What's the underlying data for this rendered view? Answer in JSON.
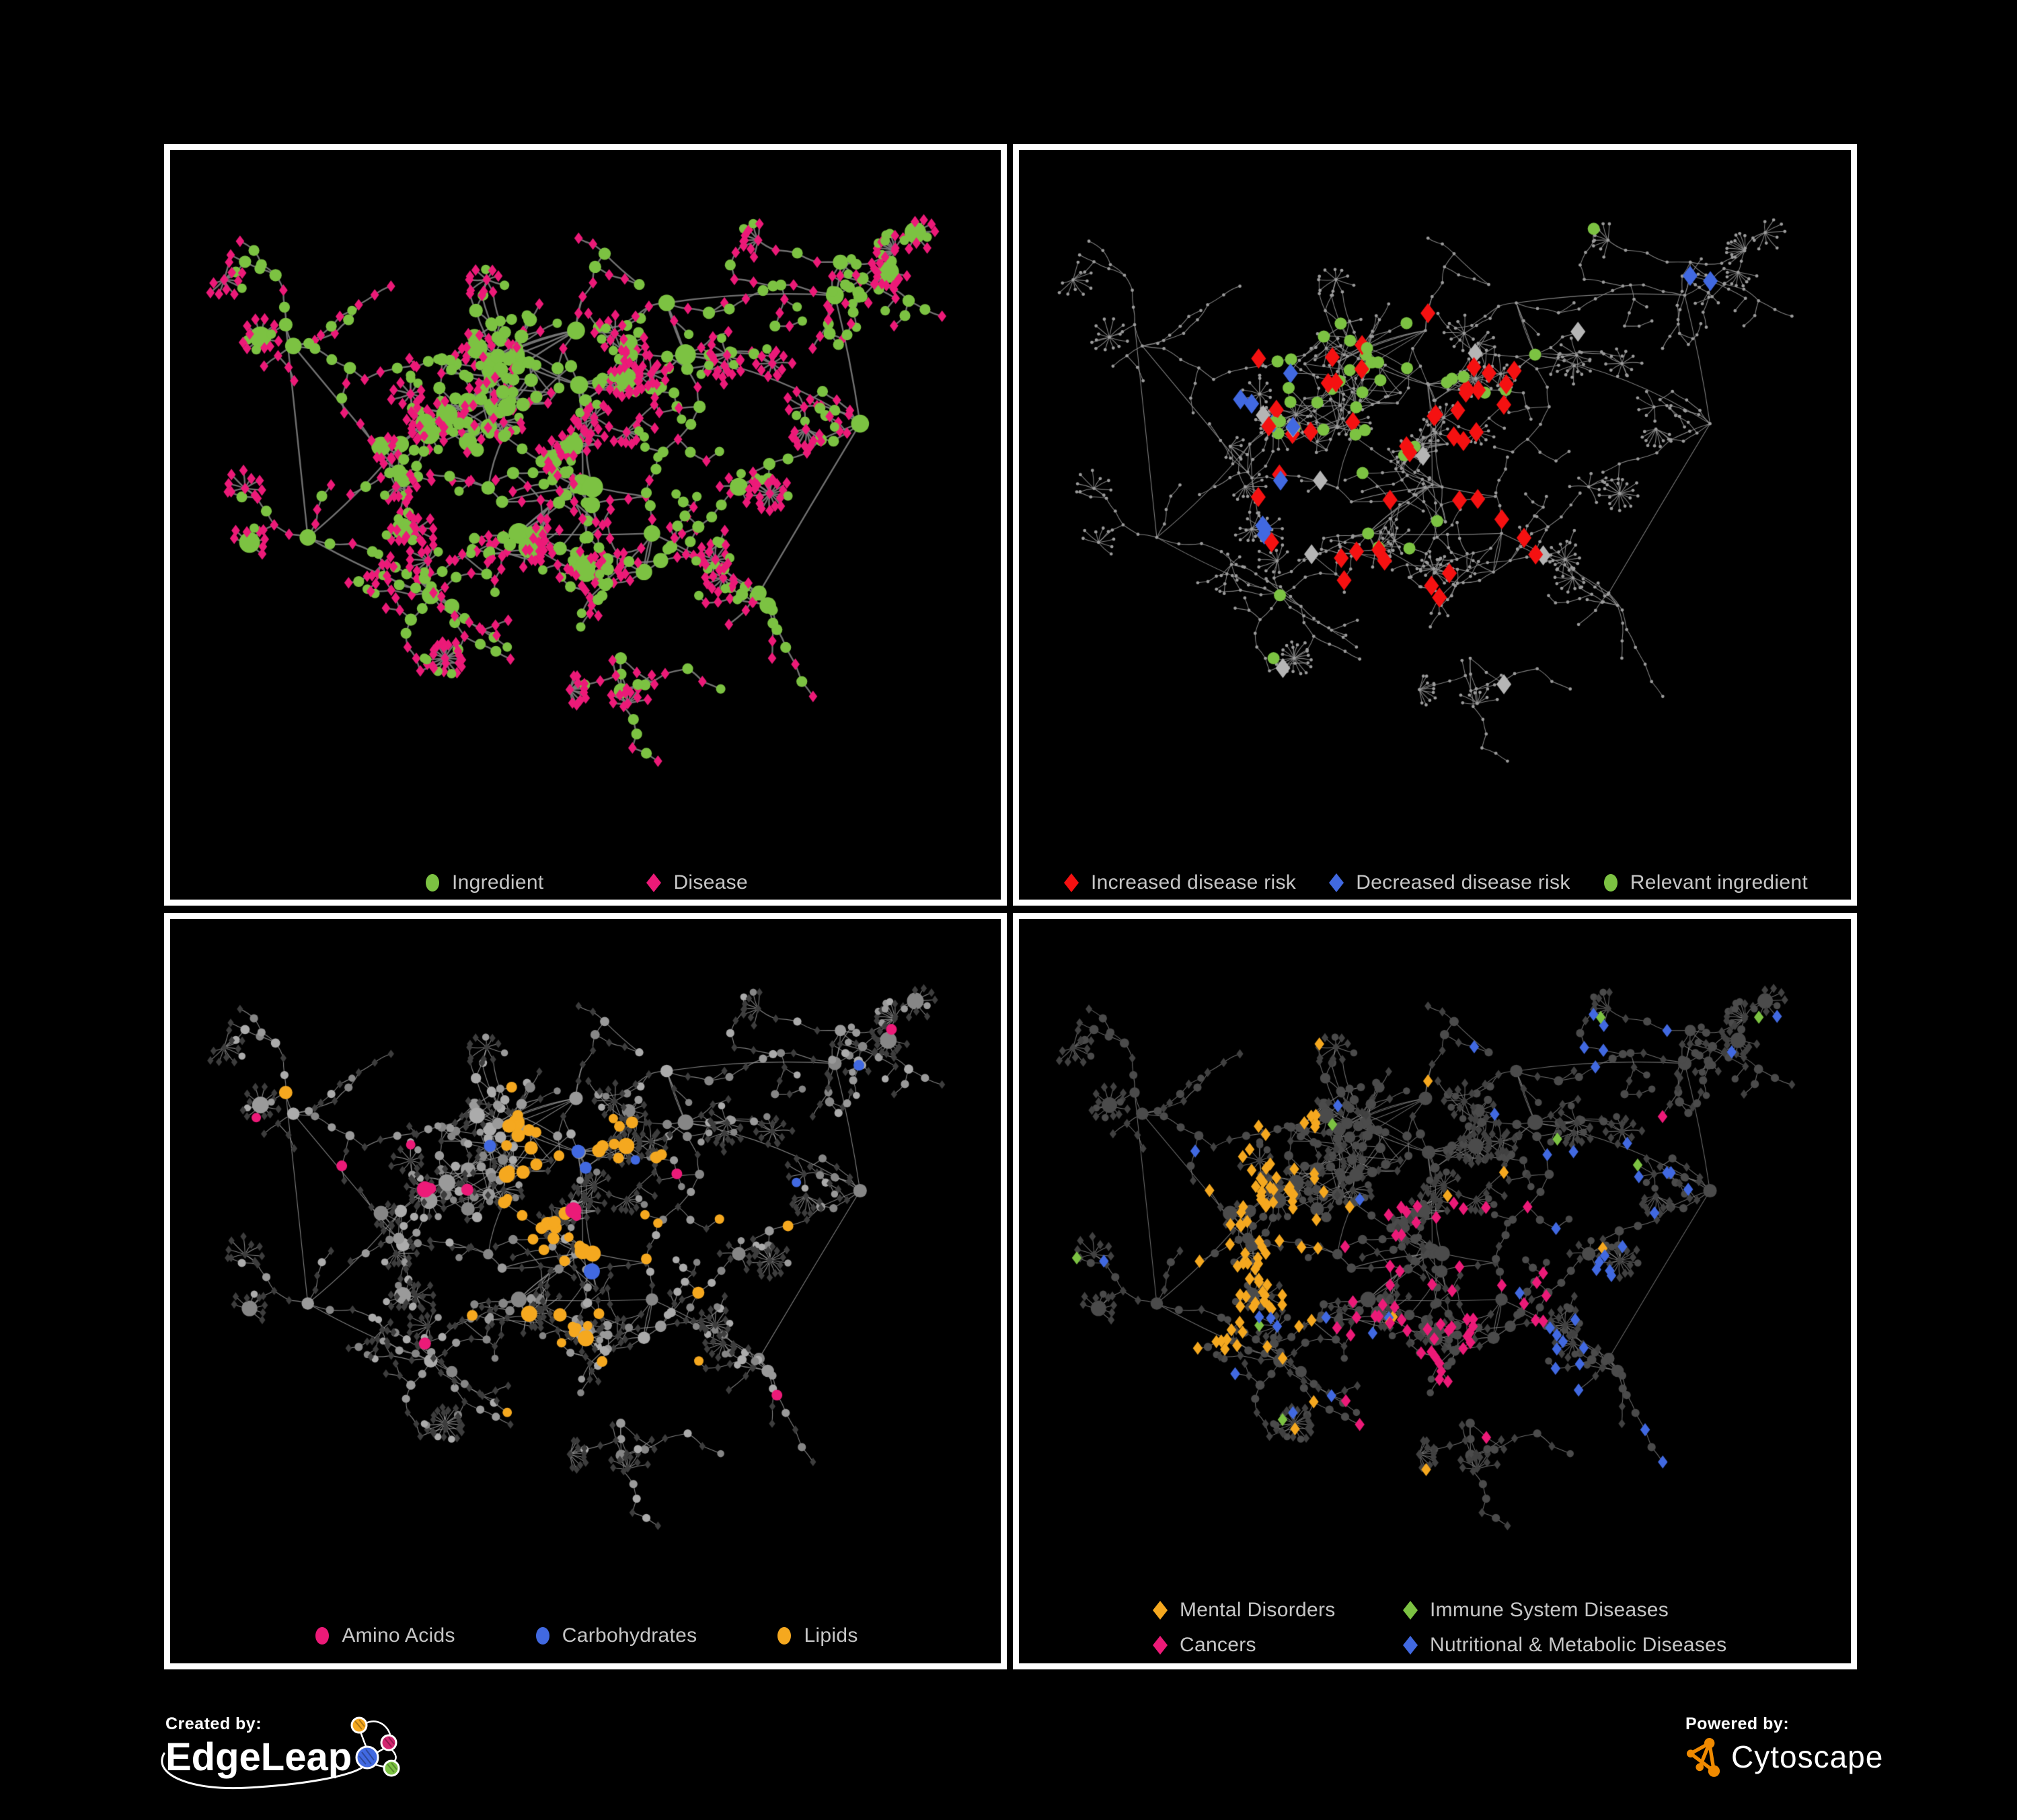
{
  "page": {
    "background": "#000000",
    "frame_color": "#ffffff",
    "legend_text_color": "#C6C6C6"
  },
  "panels": [
    {
      "id": "ingredient-disease-network",
      "position": "top-left",
      "legend": [
        {
          "label": "Ingredient",
          "marker": "circle",
          "color": "#7CC242"
        },
        {
          "label": "Disease",
          "marker": "diamond",
          "color": "#EC1A78"
        }
      ]
    },
    {
      "id": "disease-risk-network",
      "position": "top-right",
      "legend": [
        {
          "label": "Increased disease risk",
          "marker": "diamond",
          "color": "#F51111"
        },
        {
          "label": "Decreased disease risk",
          "marker": "diamond",
          "color": "#4169E1"
        },
        {
          "label": "Relevant ingredient",
          "marker": "circle",
          "color": "#7CC242"
        }
      ]
    },
    {
      "id": "nutrient-class-network",
      "position": "bottom-left",
      "legend": [
        {
          "label": "Amino Acids",
          "marker": "circle",
          "color": "#EC1A78"
        },
        {
          "label": "Carbohydrates",
          "marker": "circle",
          "color": "#4169E1"
        },
        {
          "label": "Lipids",
          "marker": "circle",
          "color": "#F5A81F"
        }
      ]
    },
    {
      "id": "disease-class-network",
      "position": "bottom-right",
      "legend": [
        {
          "label": "Mental Disorders",
          "marker": "diamond",
          "color": "#F5A81F"
        },
        {
          "label": "Immune System Diseases",
          "marker": "diamond",
          "color": "#7CC242"
        },
        {
          "label": "Cancers",
          "marker": "diamond",
          "color": "#EC1A78"
        },
        {
          "label": "Nutritional & Metabolic Diseases",
          "marker": "diamond",
          "color": "#4169E1"
        }
      ]
    }
  ],
  "network_styles": {
    "ingredient-disease-network": {
      "edge": "#7D7D7D",
      "ingredient": "#7CC242",
      "disease": "#EC1A78"
    },
    "disease-risk-network": {
      "edge": "#8D8D8D",
      "node": "#9B9B9B",
      "increased": "#F51111",
      "decreased": "#4169E1",
      "no_effect": "#B5B5B5",
      "relevant": "#7CC242"
    },
    "nutrient-class-network": {
      "edge": "#9E9E9E",
      "ingredient": "#A6A6A6",
      "disease": "#3D3D3D",
      "amino_acids": "#EC1A78",
      "carbohydrates": "#4169E1",
      "lipids": "#F5A81F"
    },
    "disease-class-network": {
      "edge": "#8A8A8A",
      "ingredient": "#4B4B4B",
      "disease": "#414141",
      "mental": "#F5A81F",
      "immune": "#7CC242",
      "cancers": "#EC1A78",
      "nutritional": "#4169E1"
    }
  },
  "footer": {
    "created_by_label": "Created by:",
    "edgeleap_name": "EdgeLeap",
    "edgeleap_logo_colors": {
      "orange": "#F5A81F",
      "magenta": "#D2256F",
      "blue": "#4169E1",
      "green": "#7CC242"
    },
    "powered_by_label": "Powered by:",
    "cytoscape_name": "Cytoscape",
    "cytoscape_logo_color": "#F08A00"
  }
}
